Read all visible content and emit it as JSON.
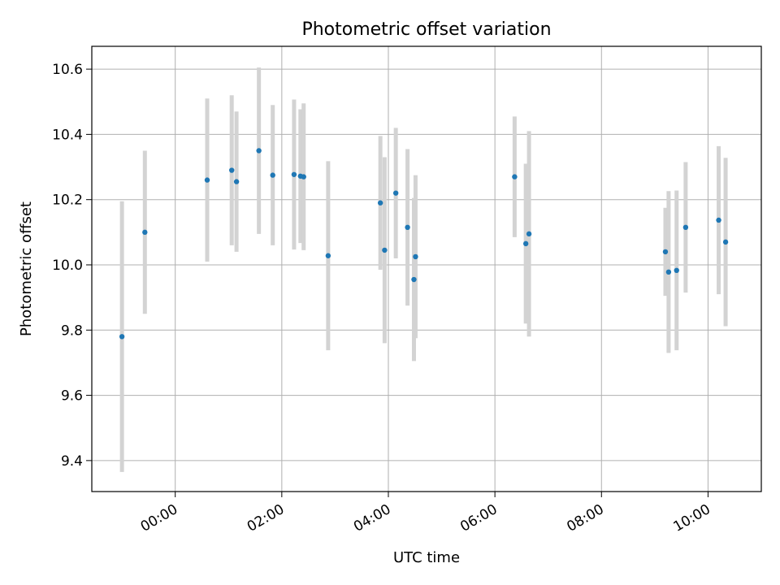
{
  "chart_data": {
    "type": "scatter",
    "title": "Photometric offset variation",
    "xlabel": "UTC time",
    "ylabel": "Photometric offset",
    "x_unit": "UTC hours",
    "xlim": [
      -1.566,
      11.0
    ],
    "ylim": [
      9.305,
      10.67
    ],
    "xticks": [
      {
        "value": 0,
        "label": "00:00"
      },
      {
        "value": 2,
        "label": "02:00"
      },
      {
        "value": 4,
        "label": "04:00"
      },
      {
        "value": 6,
        "label": "06:00"
      },
      {
        "value": 8,
        "label": "08:00"
      },
      {
        "value": 10,
        "label": "10:00"
      }
    ],
    "yticks": [
      {
        "value": 9.4,
        "label": "9.4"
      },
      {
        "value": 9.6,
        "label": "9.6"
      },
      {
        "value": 9.8,
        "label": "9.8"
      },
      {
        "value": 10.0,
        "label": "10.0"
      },
      {
        "value": 10.2,
        "label": "10.2"
      },
      {
        "value": 10.4,
        "label": "10.4"
      },
      {
        "value": 10.6,
        "label": "10.6"
      }
    ],
    "grid": true,
    "marker_color": "#1f77b4",
    "errorbar_color": "#d3d3d3",
    "points": [
      {
        "x": -1.0,
        "y": 9.78,
        "err": 0.415
      },
      {
        "x": -0.57,
        "y": 10.1,
        "err": 0.25
      },
      {
        "x": 0.6,
        "y": 10.26,
        "err": 0.25
      },
      {
        "x": 1.06,
        "y": 10.29,
        "err": 0.23
      },
      {
        "x": 1.15,
        "y": 10.255,
        "err": 0.215
      },
      {
        "x": 1.57,
        "y": 10.35,
        "err": 0.255
      },
      {
        "x": 1.83,
        "y": 10.275,
        "err": 0.215
      },
      {
        "x": 2.23,
        "y": 10.277,
        "err": 0.23
      },
      {
        "x": 2.35,
        "y": 10.272,
        "err": 0.205
      },
      {
        "x": 2.41,
        "y": 10.27,
        "err": 0.225
      },
      {
        "x": 2.87,
        "y": 10.028,
        "err": 0.29
      },
      {
        "x": 3.85,
        "y": 10.19,
        "err": 0.205
      },
      {
        "x": 3.93,
        "y": 10.045,
        "err": 0.285
      },
      {
        "x": 4.14,
        "y": 10.22,
        "err": 0.2
      },
      {
        "x": 4.36,
        "y": 10.115,
        "err": 0.24
      },
      {
        "x": 4.48,
        "y": 9.955,
        "err": 0.25
      },
      {
        "x": 4.51,
        "y": 10.025,
        "err": 0.25
      },
      {
        "x": 6.37,
        "y": 10.27,
        "err": 0.185
      },
      {
        "x": 6.58,
        "y": 10.065,
        "err": 0.245
      },
      {
        "x": 6.64,
        "y": 10.095,
        "err": 0.315
      },
      {
        "x": 9.2,
        "y": 10.04,
        "err": 0.135
      },
      {
        "x": 9.26,
        "y": 9.978,
        "err": 0.248
      },
      {
        "x": 9.41,
        "y": 9.983,
        "err": 0.245
      },
      {
        "x": 9.58,
        "y": 10.115,
        "err": 0.2
      },
      {
        "x": 10.2,
        "y": 10.137,
        "err": 0.227
      },
      {
        "x": 10.33,
        "y": 10.07,
        "err": 0.258
      }
    ]
  }
}
